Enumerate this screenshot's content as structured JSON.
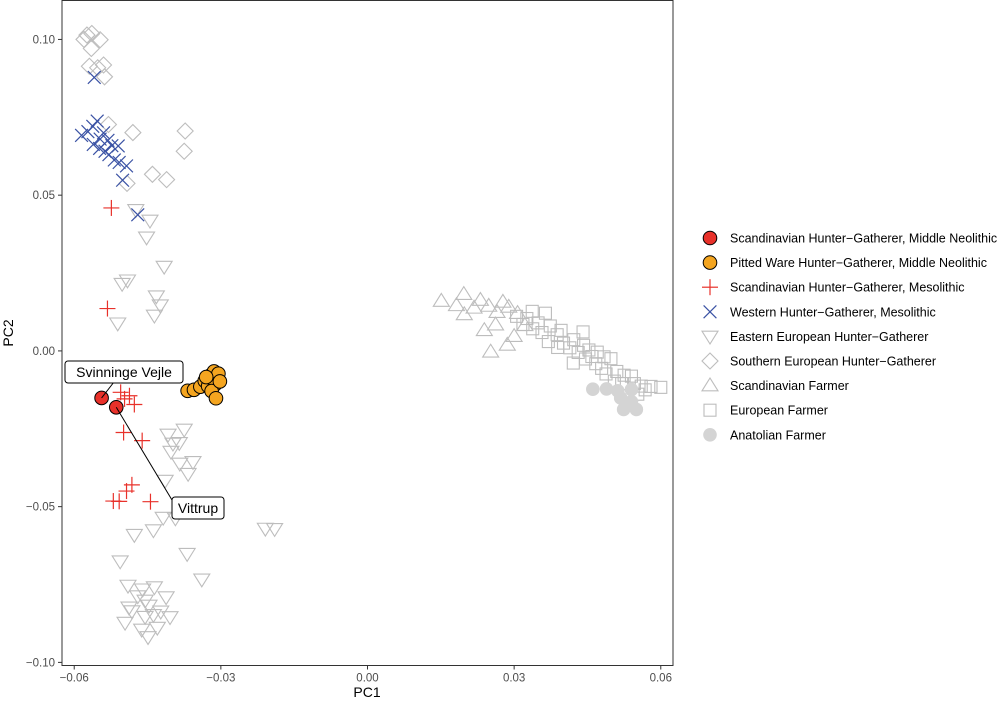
{
  "chart_data": {
    "type": "scatter",
    "xlabel": "PC1",
    "ylabel": "PC2",
    "xlim": [
      -0.0625,
      0.0625
    ],
    "ylim": [
      -0.101,
      0.1125
    ],
    "x_ticks": [
      -0.06,
      -0.03,
      0.0,
      0.03,
      0.06
    ],
    "x_tick_labels": [
      "−0.06",
      "−0.03",
      "0.00",
      "0.03",
      "0.06"
    ],
    "y_ticks": [
      -0.1,
      -0.05,
      0.0,
      0.05,
      0.1
    ],
    "y_tick_labels": [
      "−0.10",
      "−0.05",
      "0.00",
      "0.05",
      "0.10"
    ],
    "grid": false,
    "legend_position": "right",
    "annotations": [
      {
        "text": "Svinninge Vejle",
        "x": -0.0544,
        "y": -0.0151
      },
      {
        "text": "Vittrup",
        "x": -0.0514,
        "y": -0.0181
      }
    ],
    "series": [
      {
        "name": "Scandinavian Hunter−Gatherer, Middle Neolithic",
        "marker": "filled-circle",
        "color": "#e8312a",
        "points": [
          [
            -0.0544,
            -0.0151
          ],
          [
            -0.0514,
            -0.0181
          ]
        ]
      },
      {
        "name": "Pitted Ware Hunter−Gatherer, Middle Neolithic",
        "marker": "filled-circle",
        "color": "#f4a520",
        "points": [
          [
            -0.0368,
            -0.0128
          ],
          [
            -0.0355,
            -0.0125
          ],
          [
            -0.0342,
            -0.0115
          ],
          [
            -0.0333,
            -0.0096
          ],
          [
            -0.0326,
            -0.0087
          ],
          [
            -0.032,
            -0.0077
          ],
          [
            -0.0314,
            -0.0066
          ],
          [
            -0.0305,
            -0.0073
          ],
          [
            -0.0326,
            -0.0113
          ],
          [
            -0.0312,
            -0.0108
          ],
          [
            -0.0319,
            -0.0129
          ],
          [
            -0.031,
            -0.0152
          ],
          [
            -0.0302,
            -0.0098
          ],
          [
            -0.033,
            -0.0084
          ]
        ]
      },
      {
        "name": "Scandinavian Hunter−Gatherer, Mesolithic",
        "marker": "plus",
        "color": "#e8312a",
        "points": [
          [
            -0.0524,
            0.0459
          ],
          [
            -0.0532,
            0.0136
          ],
          [
            -0.0505,
            -0.0133
          ],
          [
            -0.0497,
            -0.0154
          ],
          [
            -0.0487,
            -0.0144
          ],
          [
            -0.0477,
            -0.0172
          ],
          [
            -0.0499,
            -0.0262
          ],
          [
            -0.0461,
            -0.0288
          ],
          [
            -0.0482,
            -0.043
          ],
          [
            -0.0493,
            -0.045
          ],
          [
            -0.0508,
            -0.0483
          ],
          [
            -0.052,
            -0.0482
          ],
          [
            -0.0444,
            -0.0484
          ]
        ]
      },
      {
        "name": "Western Hunter−Gatherer, Mesolithic",
        "marker": "x",
        "color": "#3a52a4",
        "points": [
          [
            -0.0559,
            0.0878
          ],
          [
            -0.0585,
            0.0692
          ],
          [
            -0.0572,
            0.0704
          ],
          [
            -0.0562,
            0.0721
          ],
          [
            -0.0553,
            0.0738
          ],
          [
            -0.0547,
            0.068
          ],
          [
            -0.054,
            0.07
          ],
          [
            -0.0531,
            0.0676
          ],
          [
            -0.0523,
            0.0659
          ],
          [
            -0.0548,
            0.065
          ],
          [
            -0.0537,
            0.0641
          ],
          [
            -0.0529,
            0.063
          ],
          [
            -0.0518,
            0.0613
          ],
          [
            -0.0508,
            0.0605
          ],
          [
            -0.0493,
            0.0594
          ],
          [
            -0.0501,
            0.0548
          ],
          [
            -0.047,
            0.0437
          ],
          [
            -0.0561,
            0.0663
          ],
          [
            -0.051,
            0.0658
          ]
        ]
      },
      {
        "name": "Eastern European Hunter−Gatherer",
        "marker": "triangle-down",
        "color": "#bdbdbd",
        "points": [
          [
            -0.0474,
            0.0453
          ],
          [
            -0.0445,
            0.0419
          ],
          [
            -0.0452,
            0.0365
          ],
          [
            -0.0491,
            0.0227
          ],
          [
            -0.0502,
            0.0216
          ],
          [
            -0.0416,
            0.0271
          ],
          [
            -0.0432,
            0.0176
          ],
          [
            -0.0424,
            0.0147
          ],
          [
            -0.0436,
            0.0114
          ],
          [
            -0.0511,
            0.0089
          ],
          [
            -0.0408,
            -0.0268
          ],
          [
            -0.0398,
            -0.0297
          ],
          [
            -0.0402,
            -0.0323
          ],
          [
            -0.0385,
            -0.0295
          ],
          [
            -0.0375,
            -0.0252
          ],
          [
            -0.0384,
            -0.0361
          ],
          [
            -0.0367,
            -0.0394
          ],
          [
            -0.0357,
            -0.0356
          ],
          [
            -0.0414,
            -0.0416
          ],
          [
            -0.0393,
            -0.0537
          ],
          [
            -0.0418,
            -0.0535
          ],
          [
            -0.0438,
            -0.0575
          ],
          [
            -0.0477,
            -0.059
          ],
          [
            -0.0506,
            -0.0675
          ],
          [
            -0.0369,
            -0.0651
          ],
          [
            -0.0339,
            -0.0733
          ],
          [
            -0.0209,
            -0.057
          ],
          [
            -0.019,
            -0.0571
          ],
          [
            -0.0436,
            -0.0758
          ],
          [
            -0.046,
            -0.0765
          ],
          [
            -0.0455,
            -0.0801
          ],
          [
            -0.0447,
            -0.0817
          ],
          [
            -0.047,
            -0.0787
          ],
          [
            -0.0482,
            -0.0835
          ],
          [
            -0.0455,
            -0.0853
          ],
          [
            -0.0438,
            -0.0847
          ],
          [
            -0.0423,
            -0.0836
          ],
          [
            -0.0462,
            -0.0894
          ],
          [
            -0.0449,
            -0.0918
          ],
          [
            -0.043,
            -0.0888
          ],
          [
            -0.0412,
            -0.079
          ],
          [
            -0.0488,
            -0.0823
          ],
          [
            -0.049,
            -0.0753
          ],
          [
            -0.0404,
            -0.0854
          ],
          [
            -0.0496,
            -0.0872
          ]
        ]
      },
      {
        "name": "Southern European Hunter−Gatherer",
        "marker": "diamond",
        "color": "#bdbdbd",
        "points": [
          [
            -0.0574,
            0.1014
          ],
          [
            -0.0564,
            0.1019
          ],
          [
            -0.058,
            0.1
          ],
          [
            -0.0565,
            0.0971
          ],
          [
            -0.0547,
            0.0999
          ],
          [
            -0.0569,
            0.0914
          ],
          [
            -0.0552,
            0.0909
          ],
          [
            -0.0538,
            0.088
          ],
          [
            -0.054,
            0.0918
          ],
          [
            -0.048,
            0.0701
          ],
          [
            -0.0373,
            0.0706
          ],
          [
            -0.0375,
            0.0641
          ],
          [
            -0.044,
            0.0567
          ],
          [
            -0.0492,
            0.0538
          ],
          [
            -0.0411,
            0.055
          ],
          [
            -0.053,
            0.0727
          ]
        ]
      },
      {
        "name": "Scandinavian Farmer",
        "marker": "triangle-up",
        "color": "#bdbdbd",
        "points": [
          [
            0.0151,
            0.016
          ],
          [
            0.0182,
            0.0146
          ],
          [
            0.0197,
            0.0182
          ],
          [
            0.0218,
            0.0138
          ],
          [
            0.0231,
            0.0163
          ],
          [
            0.0248,
            0.0144
          ],
          [
            0.0265,
            0.0124
          ],
          [
            0.0277,
            0.0157
          ],
          [
            0.0289,
            0.0141
          ],
          [
            0.0307,
            0.0121
          ],
          [
            0.0239,
            0.0066
          ],
          [
            0.0262,
            0.0084
          ],
          [
            0.03,
            0.0047
          ],
          [
            0.0322,
            0.0082
          ],
          [
            0.0198,
            0.0117
          ],
          [
            0.0286,
            0.0019
          ],
          [
            0.0252,
            -0.0003
          ]
        ]
      },
      {
        "name": "European Farmer",
        "marker": "square",
        "color": "#bdbdbd",
        "points": [
          [
            0.0305,
            0.0111
          ],
          [
            0.0318,
            0.0085
          ],
          [
            0.0326,
            0.0104
          ],
          [
            0.0338,
            0.0071
          ],
          [
            0.0349,
            0.009
          ],
          [
            0.0364,
            0.0121
          ],
          [
            0.0357,
            0.0059
          ],
          [
            0.0374,
            0.008
          ],
          [
            0.0388,
            0.0052
          ],
          [
            0.0396,
            0.0066
          ],
          [
            0.037,
            0.003
          ],
          [
            0.0389,
            0.0011
          ],
          [
            0.0401,
            0.0025
          ],
          [
            0.0414,
            0.001
          ],
          [
            0.0422,
            0.0036
          ],
          [
            0.0431,
            -0.0005
          ],
          [
            0.0442,
            0.0018
          ],
          [
            0.0453,
            0.0003
          ],
          [
            0.0446,
            -0.0026
          ],
          [
            0.0459,
            -0.0018
          ],
          [
            0.047,
            -0.0004
          ],
          [
            0.0484,
            -0.0019
          ],
          [
            0.0498,
            -0.0025
          ],
          [
            0.0467,
            -0.0041
          ],
          [
            0.0479,
            -0.0056
          ],
          [
            0.0488,
            -0.0074
          ],
          [
            0.051,
            -0.0066
          ],
          [
            0.0525,
            -0.0078
          ],
          [
            0.054,
            -0.0081
          ],
          [
            0.0505,
            -0.0097
          ],
          [
            0.052,
            -0.0105
          ],
          [
            0.0546,
            -0.0105
          ],
          [
            0.056,
            -0.0113
          ],
          [
            0.058,
            -0.0114
          ],
          [
            0.06,
            -0.0117
          ],
          [
            0.0568,
            -0.0125
          ],
          [
            0.0553,
            -0.0139
          ],
          [
            0.0421,
            -0.0039
          ],
          [
            0.0441,
            0.0061
          ],
          [
            0.0337,
            0.0127
          ]
        ]
      },
      {
        "name": "Anatolian Farmer",
        "marker": "filled-circle",
        "color": "#d4d4d4",
        "points": [
          [
            0.0461,
            -0.0123
          ],
          [
            0.0489,
            -0.0122
          ],
          [
            0.0512,
            -0.0128
          ],
          [
            0.0518,
            -0.0151
          ],
          [
            0.054,
            -0.0124
          ],
          [
            0.054,
            -0.0163
          ],
          [
            0.055,
            -0.0188
          ],
          [
            0.0524,
            -0.0188
          ]
        ]
      }
    ]
  }
}
